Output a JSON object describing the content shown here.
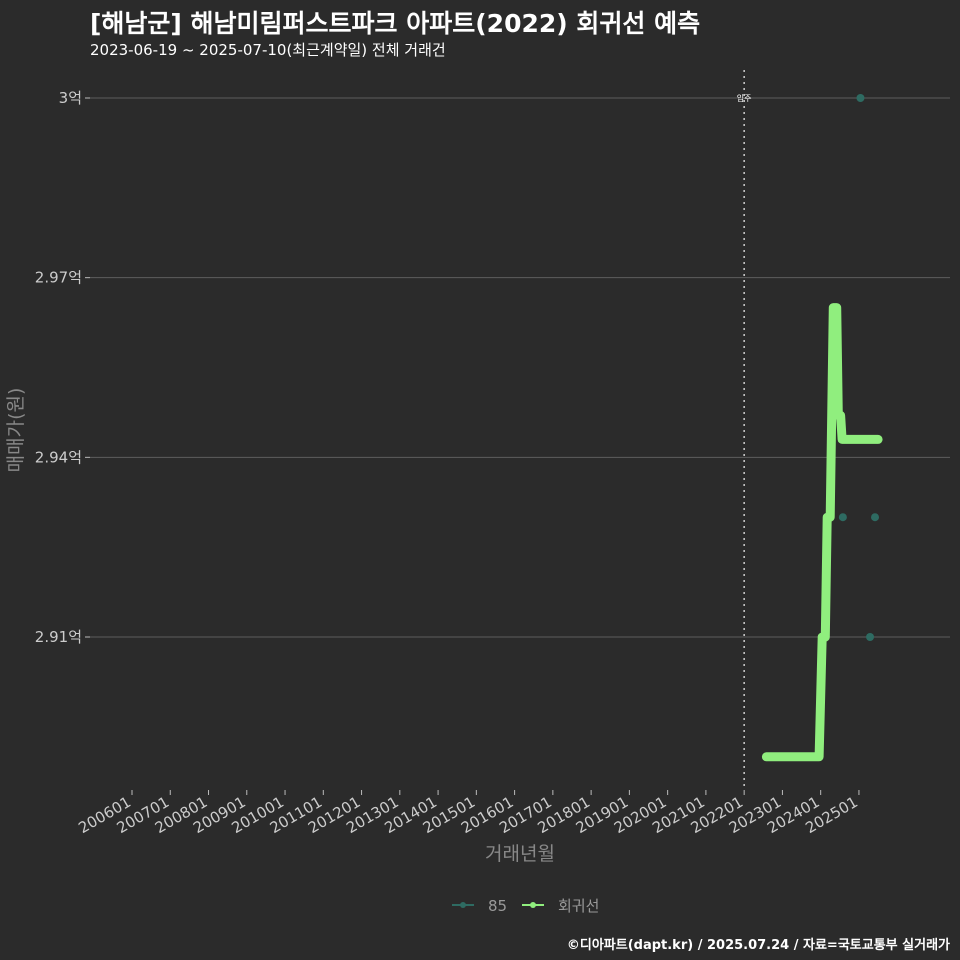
{
  "title": "[해남군] 해남미림퍼스트파크 아파트(2022) 회귀선 예측",
  "subtitle": "2023-06-19 ~ 2025-07-10(최근계약일) 전체 거래건",
  "footer": "©디아파트(dapt.kr) / 2025.07.24 / 자료=국토교통부 실거래가",
  "chart_data": {
    "type": "line",
    "xlabel": "거래년월",
    "ylabel": "매매가(원)",
    "x_tick_labels": [
      "200601",
      "200701",
      "200801",
      "200901",
      "201001",
      "201101",
      "201201",
      "201301",
      "201401",
      "201501",
      "201601",
      "201701",
      "201801",
      "201901",
      "202001",
      "202101",
      "202201",
      "202301",
      "202401",
      "202501"
    ],
    "y_ticks": [
      {
        "value": 2.91,
        "label": "2.91억"
      },
      {
        "value": 2.94,
        "label": "2.94억"
      },
      {
        "value": 2.97,
        "label": "2.97억"
      },
      {
        "value": 3.0,
        "label": "3억"
      }
    ],
    "ylim": [
      2.88,
      3.005
    ],
    "annotation": {
      "x": 2022.0,
      "label": "입주"
    },
    "series": [
      {
        "name": "85",
        "type": "scatter",
        "color": "#2e6b62",
        "points": [
          {
            "x": 2024.58,
            "y": 2.93
          },
          {
            "x": 2025.04,
            "y": 3.0
          },
          {
            "x": 2025.29,
            "y": 2.91
          },
          {
            "x": 2025.42,
            "y": 2.93
          }
        ]
      },
      {
        "name": "회귀선",
        "type": "line",
        "color": "#90ee7e",
        "points": [
          {
            "x": 2022.58,
            "y": 2.89
          },
          {
            "x": 2023.96,
            "y": 2.89
          },
          {
            "x": 2024.04,
            "y": 2.91
          },
          {
            "x": 2024.12,
            "y": 2.91
          },
          {
            "x": 2024.17,
            "y": 2.93
          },
          {
            "x": 2024.25,
            "y": 2.93
          },
          {
            "x": 2024.33,
            "y": 2.965
          },
          {
            "x": 2024.42,
            "y": 2.965
          },
          {
            "x": 2024.46,
            "y": 2.947
          },
          {
            "x": 2024.52,
            "y": 2.947
          },
          {
            "x": 2024.56,
            "y": 2.943
          },
          {
            "x": 2025.5,
            "y": 2.943
          }
        ]
      }
    ],
    "legend": [
      {
        "name": "85",
        "color": "#2e6b62"
      },
      {
        "name": "회귀선",
        "color": "#90ee7e"
      }
    ]
  }
}
